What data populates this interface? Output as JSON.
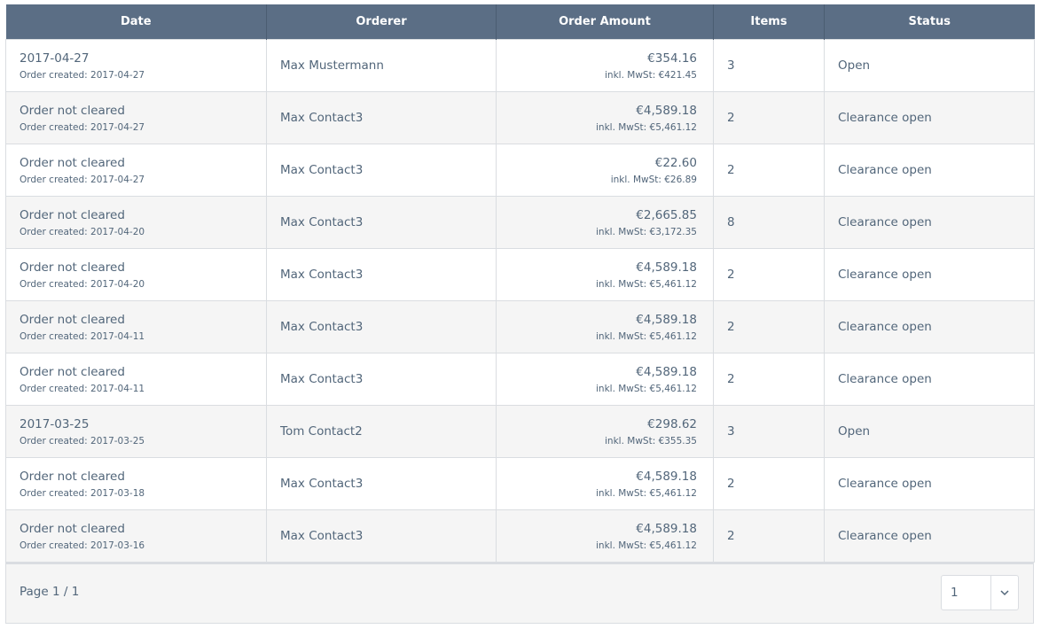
{
  "table": {
    "columns": [
      "Date",
      "Orderer",
      "Order Amount",
      "Items",
      "Status"
    ],
    "rows": [
      {
        "date": "2017-04-27",
        "created": "Order created: 2017-04-27",
        "orderer": "Max Mustermann",
        "amount": "€354.16",
        "tax": "inkl. MwSt: €421.45",
        "items": "3",
        "status": "Open"
      },
      {
        "date": "Order not cleared",
        "created": "Order created: 2017-04-27",
        "orderer": "Max Contact3",
        "amount": "€4,589.18",
        "tax": "inkl. MwSt: €5,461.12",
        "items": "2",
        "status": "Clearance open"
      },
      {
        "date": "Order not cleared",
        "created": "Order created: 2017-04-27",
        "orderer": "Max Contact3",
        "amount": "€22.60",
        "tax": "inkl. MwSt: €26.89",
        "items": "2",
        "status": "Clearance open"
      },
      {
        "date": "Order not cleared",
        "created": "Order created: 2017-04-20",
        "orderer": "Max Contact3",
        "amount": "€2,665.85",
        "tax": "inkl. MwSt: €3,172.35",
        "items": "8",
        "status": "Clearance open"
      },
      {
        "date": "Order not cleared",
        "created": "Order created: 2017-04-20",
        "orderer": "Max Contact3",
        "amount": "€4,589.18",
        "tax": "inkl. MwSt: €5,461.12",
        "items": "2",
        "status": "Clearance open"
      },
      {
        "date": "Order not cleared",
        "created": "Order created: 2017-04-11",
        "orderer": "Max Contact3",
        "amount": "€4,589.18",
        "tax": "inkl. MwSt: €5,461.12",
        "items": "2",
        "status": "Clearance open"
      },
      {
        "date": "Order not cleared",
        "created": "Order created: 2017-04-11",
        "orderer": "Max Contact3",
        "amount": "€4,589.18",
        "tax": "inkl. MwSt: €5,461.12",
        "items": "2",
        "status": "Clearance open"
      },
      {
        "date": "2017-03-25",
        "created": "Order created: 2017-03-25",
        "orderer": "Tom Contact2",
        "amount": "€298.62",
        "tax": "inkl. MwSt: €355.35",
        "items": "3",
        "status": "Open"
      },
      {
        "date": "Order not cleared",
        "created": "Order created: 2017-03-18",
        "orderer": "Max Contact3",
        "amount": "€4,589.18",
        "tax": "inkl. MwSt: €5,461.12",
        "items": "2",
        "status": "Clearance open"
      },
      {
        "date": "Order not cleared",
        "created": "Order created: 2017-03-16",
        "orderer": "Max Contact3",
        "amount": "€4,589.18",
        "tax": "inkl. MwSt: €5,461.12",
        "items": "2",
        "status": "Clearance open"
      }
    ]
  },
  "footer": {
    "page": "Page 1 / 1",
    "page_select": "1"
  }
}
